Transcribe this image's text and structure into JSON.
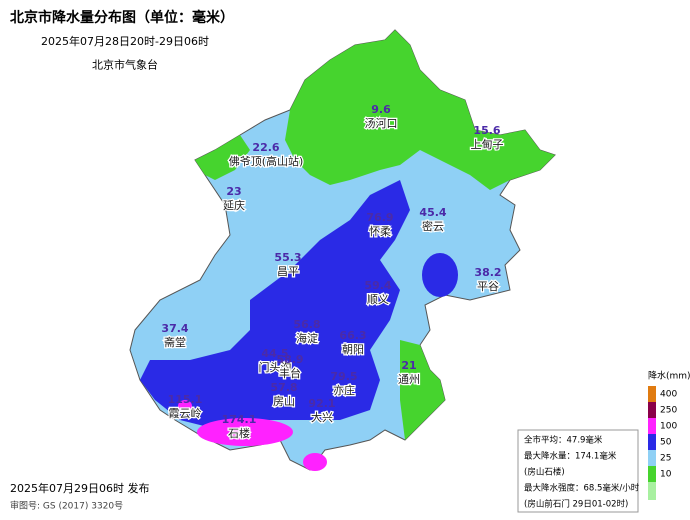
{
  "header": {
    "title": "北京市降水量分布图（单位：毫米）",
    "subtitle": "2025年07月28日20时-29日06时",
    "issuer": "北京市气象台"
  },
  "stations": [
    {
      "name": "汤河口",
      "value": 9.6
    },
    {
      "name": "上甸子",
      "value": 15.6
    },
    {
      "name": "佛爷顶(高山站)",
      "value": 22.6
    },
    {
      "name": "延庆",
      "value": 23
    },
    {
      "name": "怀柔",
      "value": 76.9
    },
    {
      "name": "密云",
      "value": 45.4
    },
    {
      "name": "昌平",
      "value": 55.3
    },
    {
      "name": "顺义",
      "value": 59.4
    },
    {
      "name": "平谷",
      "value": 38.2
    },
    {
      "name": "斋堂",
      "value": 37.4
    },
    {
      "name": "海淀",
      "value": 56.8
    },
    {
      "name": "朝阳",
      "value": 66.3
    },
    {
      "name": "门头沟",
      "value": 44.5
    },
    {
      "name": "丰台",
      "value": 58.9
    },
    {
      "name": "房山",
      "value": 57.8
    },
    {
      "name": "亦庄",
      "value": 79.5
    },
    {
      "name": "通州",
      "value": 21
    },
    {
      "name": "霞云岭",
      "value": 115.1
    },
    {
      "name": "石楼",
      "value": 174.1
    },
    {
      "name": "大兴",
      "value": 92.1
    }
  ],
  "legend": {
    "title": "降水(mm)",
    "items": [
      {
        "value": 400,
        "color": "#e07b10"
      },
      {
        "value": 250,
        "color": "#8a0048"
      },
      {
        "value": 100,
        "color": "#ff22ff"
      },
      {
        "value": 50,
        "color": "#2a2ae6"
      },
      {
        "value": 25,
        "color": "#8fd0f5"
      },
      {
        "value": 10,
        "color": "#46d42e"
      }
    ]
  },
  "info": {
    "lines": [
      "全市平均：47.9毫米",
      "最大降水量：174.1毫米",
      "(房山石楼)",
      "最大降水强度：68.5毫米/小时",
      "(房山前石门 29日01-02时)"
    ]
  },
  "footer": {
    "issued": "2025年07月29日06时 发布",
    "approval": "审图号: GS (2017) 3320号"
  }
}
